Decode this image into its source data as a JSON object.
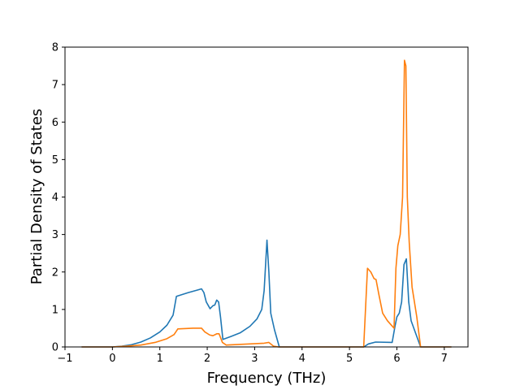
{
  "chart_data": {
    "type": "line",
    "title": "",
    "xlabel": "Frequency (THz)",
    "ylabel": "Partial Density of States",
    "xlim": [
      -1.0,
      7.5
    ],
    "ylim": [
      0,
      8
    ],
    "xticks": [
      -1,
      0,
      1,
      2,
      3,
      4,
      5,
      6,
      7
    ],
    "yticks": [
      0,
      1,
      2,
      3,
      4,
      5,
      6,
      7,
      8
    ],
    "grid": false,
    "legend": "none",
    "series": [
      {
        "color": "#1f77b4",
        "points": [
          [
            -0.65,
            0.0
          ],
          [
            0.0,
            0.0
          ],
          [
            0.2,
            0.02
          ],
          [
            0.4,
            0.06
          ],
          [
            0.6,
            0.13
          ],
          [
            0.8,
            0.24
          ],
          [
            1.0,
            0.4
          ],
          [
            1.15,
            0.58
          ],
          [
            1.28,
            0.85
          ],
          [
            1.35,
            1.35
          ],
          [
            1.6,
            1.45
          ],
          [
            1.8,
            1.52
          ],
          [
            1.88,
            1.55
          ],
          [
            1.93,
            1.45
          ],
          [
            1.98,
            1.2
          ],
          [
            2.06,
            1.02
          ],
          [
            2.12,
            1.1
          ],
          [
            2.16,
            1.12
          ],
          [
            2.2,
            1.25
          ],
          [
            2.24,
            1.2
          ],
          [
            2.28,
            0.8
          ],
          [
            2.33,
            0.2
          ],
          [
            2.5,
            0.28
          ],
          [
            2.7,
            0.38
          ],
          [
            2.9,
            0.55
          ],
          [
            3.05,
            0.75
          ],
          [
            3.15,
            1.0
          ],
          [
            3.2,
            1.5
          ],
          [
            3.26,
            2.85
          ],
          [
            3.3,
            2.0
          ],
          [
            3.34,
            0.9
          ],
          [
            3.42,
            0.45
          ],
          [
            3.52,
            0.0
          ],
          [
            5.3,
            0.0
          ],
          [
            5.4,
            0.08
          ],
          [
            5.55,
            0.13
          ],
          [
            5.9,
            0.12
          ],
          [
            5.96,
            0.55
          ],
          [
            6.0,
            0.8
          ],
          [
            6.05,
            0.9
          ],
          [
            6.1,
            1.2
          ],
          [
            6.15,
            2.2
          ],
          [
            6.2,
            2.35
          ],
          [
            6.25,
            1.2
          ],
          [
            6.3,
            0.7
          ],
          [
            6.4,
            0.35
          ],
          [
            6.5,
            0.0
          ],
          [
            7.15,
            0.0
          ]
        ]
      },
      {
        "color": "#ff7f0e",
        "points": [
          [
            -0.65,
            0.0
          ],
          [
            0.0,
            0.0
          ],
          [
            0.3,
            0.02
          ],
          [
            0.6,
            0.05
          ],
          [
            0.9,
            0.12
          ],
          [
            1.15,
            0.22
          ],
          [
            1.3,
            0.33
          ],
          [
            1.38,
            0.48
          ],
          [
            1.7,
            0.5
          ],
          [
            1.88,
            0.5
          ],
          [
            1.95,
            0.4
          ],
          [
            2.05,
            0.32
          ],
          [
            2.12,
            0.3
          ],
          [
            2.2,
            0.35
          ],
          [
            2.25,
            0.35
          ],
          [
            2.32,
            0.12
          ],
          [
            2.4,
            0.05
          ],
          [
            3.2,
            0.1
          ],
          [
            3.3,
            0.12
          ],
          [
            3.4,
            0.02
          ],
          [
            3.5,
            0.0
          ],
          [
            5.3,
            0.0
          ],
          [
            5.38,
            2.1
          ],
          [
            5.45,
            2.0
          ],
          [
            5.52,
            1.82
          ],
          [
            5.56,
            1.8
          ],
          [
            5.62,
            1.4
          ],
          [
            5.7,
            0.9
          ],
          [
            5.8,
            0.7
          ],
          [
            5.94,
            0.5
          ],
          [
            5.98,
            2.1
          ],
          [
            6.02,
            2.7
          ],
          [
            6.07,
            3.0
          ],
          [
            6.12,
            4.0
          ],
          [
            6.16,
            7.65
          ],
          [
            6.19,
            7.5
          ],
          [
            6.22,
            4.0
          ],
          [
            6.26,
            2.8
          ],
          [
            6.32,
            1.6
          ],
          [
            6.42,
            0.8
          ],
          [
            6.5,
            0.0
          ],
          [
            7.15,
            0.0
          ]
        ]
      }
    ]
  }
}
